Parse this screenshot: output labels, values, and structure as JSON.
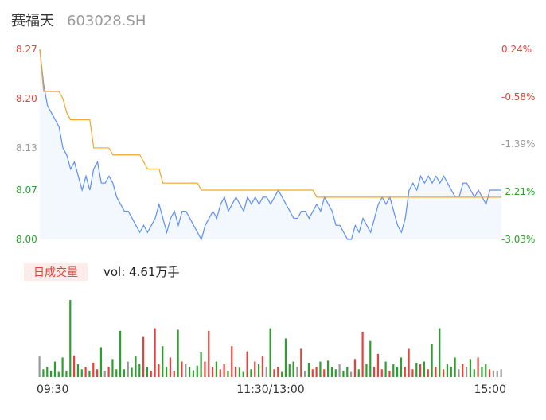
{
  "chart_data": {
    "type": "line",
    "title": "赛福天",
    "subtitle": "603028.SH",
    "x": [
      0,
      2,
      4,
      6,
      8,
      10,
      12,
      14,
      16,
      18,
      20,
      22,
      24,
      26,
      28,
      30,
      32,
      34,
      36,
      38,
      40,
      42,
      44,
      46,
      48,
      50,
      52,
      54,
      56,
      58,
      60,
      62,
      64,
      66,
      68,
      70,
      72,
      74,
      76,
      78,
      80,
      82,
      84,
      86,
      88,
      90,
      92,
      94,
      96,
      98,
      100,
      102,
      104,
      106,
      108,
      110,
      112,
      114,
      116,
      118,
      120,
      122,
      124,
      126,
      128,
      130,
      132,
      134,
      136,
      138,
      140,
      142,
      144,
      146,
      148,
      150,
      152,
      154,
      156,
      158,
      160,
      162,
      164,
      166,
      168,
      170,
      172,
      174,
      176,
      178,
      180,
      182,
      184,
      186,
      188,
      190,
      192,
      194,
      196,
      198,
      200,
      202,
      204,
      206,
      208,
      210,
      212,
      214,
      216,
      218,
      220,
      222,
      224,
      226,
      228,
      230,
      232,
      234,
      236,
      238,
      240
    ],
    "xlim": [
      0,
      240
    ],
    "xticks": [
      {
        "value": 0,
        "label": "09:30"
      },
      {
        "value": 120,
        "label": "11:30/13:00"
      },
      {
        "value": 240,
        "label": "15:00"
      }
    ],
    "ylim": [
      8,
      8.27
    ],
    "yticks": [
      8.27,
      {
        "value": 8.2,
        "label": "8.20"
      },
      8.13,
      8.07,
      {
        "value": 8,
        "label": "8.00"
      }
    ],
    "y2lim": [
      -3.03,
      0.24
    ],
    "y2ticks": [
      {
        "value": 0.24,
        "label": "0.24%"
      },
      {
        "value": -0.58,
        "label": "-0.58%"
      },
      {
        "value": -1.39,
        "label": "-1.39%"
      },
      {
        "value": -2.21,
        "label": "-2.21%"
      },
      {
        "value": -3.03,
        "label": "-3.03%"
      }
    ],
    "series": [
      {
        "color": "#5b8ff9",
        "values": [
          8.27,
          8.22,
          8.19,
          8.18,
          8.17,
          8.16,
          8.13,
          8.12,
          8.1,
          8.11,
          8.09,
          8.07,
          8.09,
          8.07,
          8.1,
          8.11,
          8.08,
          8.08,
          8.09,
          8.08,
          8.06,
          8.05,
          8.04,
          8.04,
          8.03,
          8.02,
          8.01,
          8.02,
          8.01,
          8.02,
          8.03,
          8.05,
          8.03,
          8.01,
          8.03,
          8.04,
          8.02,
          8.04,
          8.04,
          8.03,
          8.02,
          8.01,
          8.0,
          8.02,
          8.03,
          8.04,
          8.03,
          8.05,
          8.06,
          8.04,
          8.05,
          8.06,
          8.05,
          8.04,
          8.06,
          8.05,
          8.06,
          8.05,
          8.06,
          8.06,
          8.05,
          8.06,
          8.07,
          8.06,
          8.05,
          8.04,
          8.03,
          8.03,
          8.04,
          8.04,
          8.03,
          8.04,
          8.05,
          8.04,
          8.06,
          8.05,
          8.04,
          8.02,
          8.02,
          8.01,
          8.0,
          8.0,
          8.02,
          8.01,
          8.03,
          8.02,
          8.01,
          8.03,
          8.05,
          8.06,
          8.05,
          8.06,
          8.04,
          8.02,
          8.01,
          8.03,
          8.07,
          8.08,
          8.07,
          8.09,
          8.08,
          8.09,
          8.08,
          8.09,
          8.08,
          8.09,
          8.08,
          8.07,
          8.06,
          8.06,
          8.08,
          8.08,
          8.07,
          8.06,
          8.07,
          8.06,
          8.05,
          8.07,
          8.07,
          8.07,
          8.07
        ]
      },
      {
        "color": "#f5a623",
        "values": [
          8.27,
          8.21,
          8.21,
          8.21,
          8.21,
          8.21,
          8.2,
          8.18,
          8.17,
          8.17,
          8.17,
          8.17,
          8.17,
          8.17,
          8.13,
          8.13,
          8.13,
          8.13,
          8.13,
          8.12,
          8.12,
          8.12,
          8.12,
          8.12,
          8.12,
          8.12,
          8.12,
          8.11,
          8.1,
          8.1,
          8.1,
          8.1,
          8.08,
          8.08,
          8.08,
          8.08,
          8.08,
          8.08,
          8.08,
          8.08,
          8.08,
          8.08,
          8.07,
          8.07,
          8.07,
          8.07,
          8.07,
          8.07,
          8.07,
          8.07,
          8.07,
          8.07,
          8.07,
          8.07,
          8.07,
          8.07,
          8.07,
          8.07,
          8.07,
          8.07,
          8.07,
          8.07,
          8.07,
          8.07,
          8.07,
          8.07,
          8.07,
          8.07,
          8.07,
          8.07,
          8.07,
          8.07,
          8.06,
          8.06,
          8.06,
          8.06,
          8.06,
          8.06,
          8.06,
          8.06,
          8.06,
          8.06,
          8.06,
          8.06,
          8.06,
          8.06,
          8.06,
          8.06,
          8.06,
          8.06,
          8.06,
          8.06,
          8.06,
          8.06,
          8.06,
          8.06,
          8.06,
          8.06,
          8.06,
          8.06,
          8.06,
          8.06,
          8.06,
          8.06,
          8.06,
          8.06,
          8.06,
          8.06,
          8.06,
          8.06,
          8.06,
          8.06,
          8.06,
          8.06,
          8.06,
          8.06,
          8.06,
          8.06,
          8.06,
          8.06,
          8.06
        ]
      }
    ],
    "volume": {
      "label": "日成交量",
      "text": "vol: 4.61万手",
      "ylim": [
        0,
        1500
      ],
      "up_color": "#e8403a",
      "down_color": "#2ca02c",
      "flat_color": "#999999",
      "values": [
        400,
        150,
        200,
        120,
        300,
        100,
        380,
        120,
        1500,
        420,
        250,
        150,
        200,
        120,
        280,
        150,
        580,
        120,
        200,
        350,
        150,
        900,
        150,
        300,
        180,
        400,
        250,
        780,
        200,
        120,
        950,
        250,
        600,
        200,
        380,
        120,
        920,
        300,
        250,
        200,
        130,
        220,
        480,
        300,
        900,
        200,
        300,
        150,
        250,
        120,
        600,
        200,
        180,
        100,
        500,
        150,
        300,
        250,
        400,
        200,
        950,
        150,
        200,
        100,
        750,
        250,
        300,
        200,
        550,
        120,
        280,
        150,
        200,
        300,
        150,
        320,
        200,
        150,
        250,
        120,
        200,
        100,
        350,
        150,
        880,
        250,
        700,
        200,
        450,
        150,
        300,
        120,
        250,
        200,
        380,
        200,
        550,
        150,
        280,
        250,
        300,
        150,
        650,
        200,
        950,
        150,
        250,
        200,
        380,
        150,
        250,
        200,
        350,
        150,
        380,
        200,
        250,
        150,
        120,
        120,
        150
      ]
    }
  }
}
